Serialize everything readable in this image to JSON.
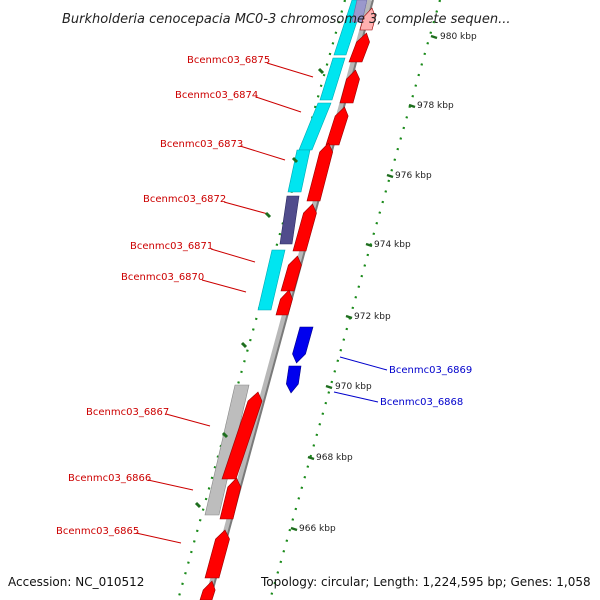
{
  "title": "Burkholderia cenocepacia MC0-3 chromosome 3, complete sequen...",
  "accession": "Accession: NC_010512",
  "summary": "Topology: circular; Length: 1,224,595 bp; Genes: 1,058",
  "scale_labels": [
    "980 kbp",
    "978 kbp",
    "976 kbp",
    "974 kbp",
    "972 kbp",
    "970 kbp",
    "968 kbp",
    "966 kbp"
  ],
  "colors": {
    "forward_gene": "#ff0000",
    "reverse_gene": "#0000ee",
    "cyan_feature": "#00e5f0",
    "gray_feature": "#bdbdbd",
    "purple_feature": "#504c8c",
    "backbone": "#888888",
    "tick": "#1a8a1a",
    "label_forward": "#cc0000",
    "label_reverse": "#0000cc"
  },
  "genes": [
    {
      "label": "Bcenmc03_6875",
      "strand": "forward"
    },
    {
      "label": "Bcenmc03_6874",
      "strand": "forward"
    },
    {
      "label": "Bcenmc03_6873",
      "strand": "forward"
    },
    {
      "label": "Bcenmc03_6872",
      "strand": "forward"
    },
    {
      "label": "Bcenmc03_6871",
      "strand": "forward"
    },
    {
      "label": "Bcenmc03_6870",
      "strand": "forward"
    },
    {
      "label": "Bcenmc03_6869",
      "strand": "reverse"
    },
    {
      "label": "Bcenmc03_6868",
      "strand": "reverse"
    },
    {
      "label": "Bcenmc03_6867",
      "strand": "forward"
    },
    {
      "label": "Bcenmc03_6866",
      "strand": "forward"
    },
    {
      "label": "Bcenmc03_6865",
      "strand": "forward"
    }
  ]
}
